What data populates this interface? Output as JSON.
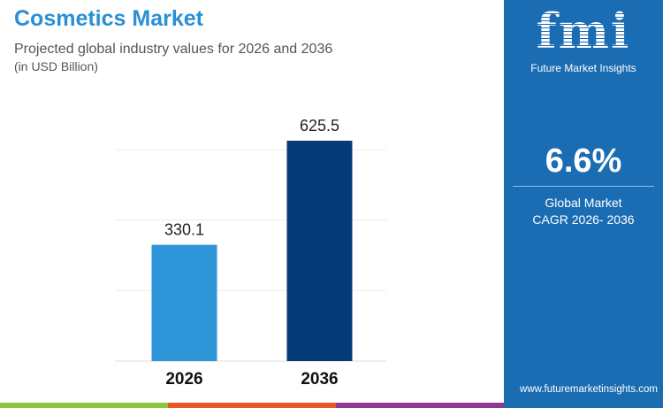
{
  "header": {
    "title": "Cosmetics Market",
    "subtitle": "Projected global industry values for 2026 and 2036",
    "unit": "(in USD Billion)"
  },
  "chart_data": {
    "type": "bar",
    "categories": [
      "2026",
      "2036"
    ],
    "values": [
      330.1,
      625.5
    ],
    "data_labels": [
      "330.1",
      "625.5"
    ],
    "ylim": [
      0,
      625.5
    ],
    "grid": true,
    "colors": [
      "#2e96d8",
      "#053b78"
    ]
  },
  "panel": {
    "logo_text": "fmi",
    "logo_tagline": "Future Market Insights",
    "cagr_value": "6.6%",
    "cagr_line1": "Global Market",
    "cagr_line2": "CAGR 2026- 2036",
    "website": "www.futuremarketinsights.com",
    "background": "#1b6db3"
  },
  "stripes": [
    "#8cc63f",
    "#e8572a",
    "#8e3a8e"
  ]
}
